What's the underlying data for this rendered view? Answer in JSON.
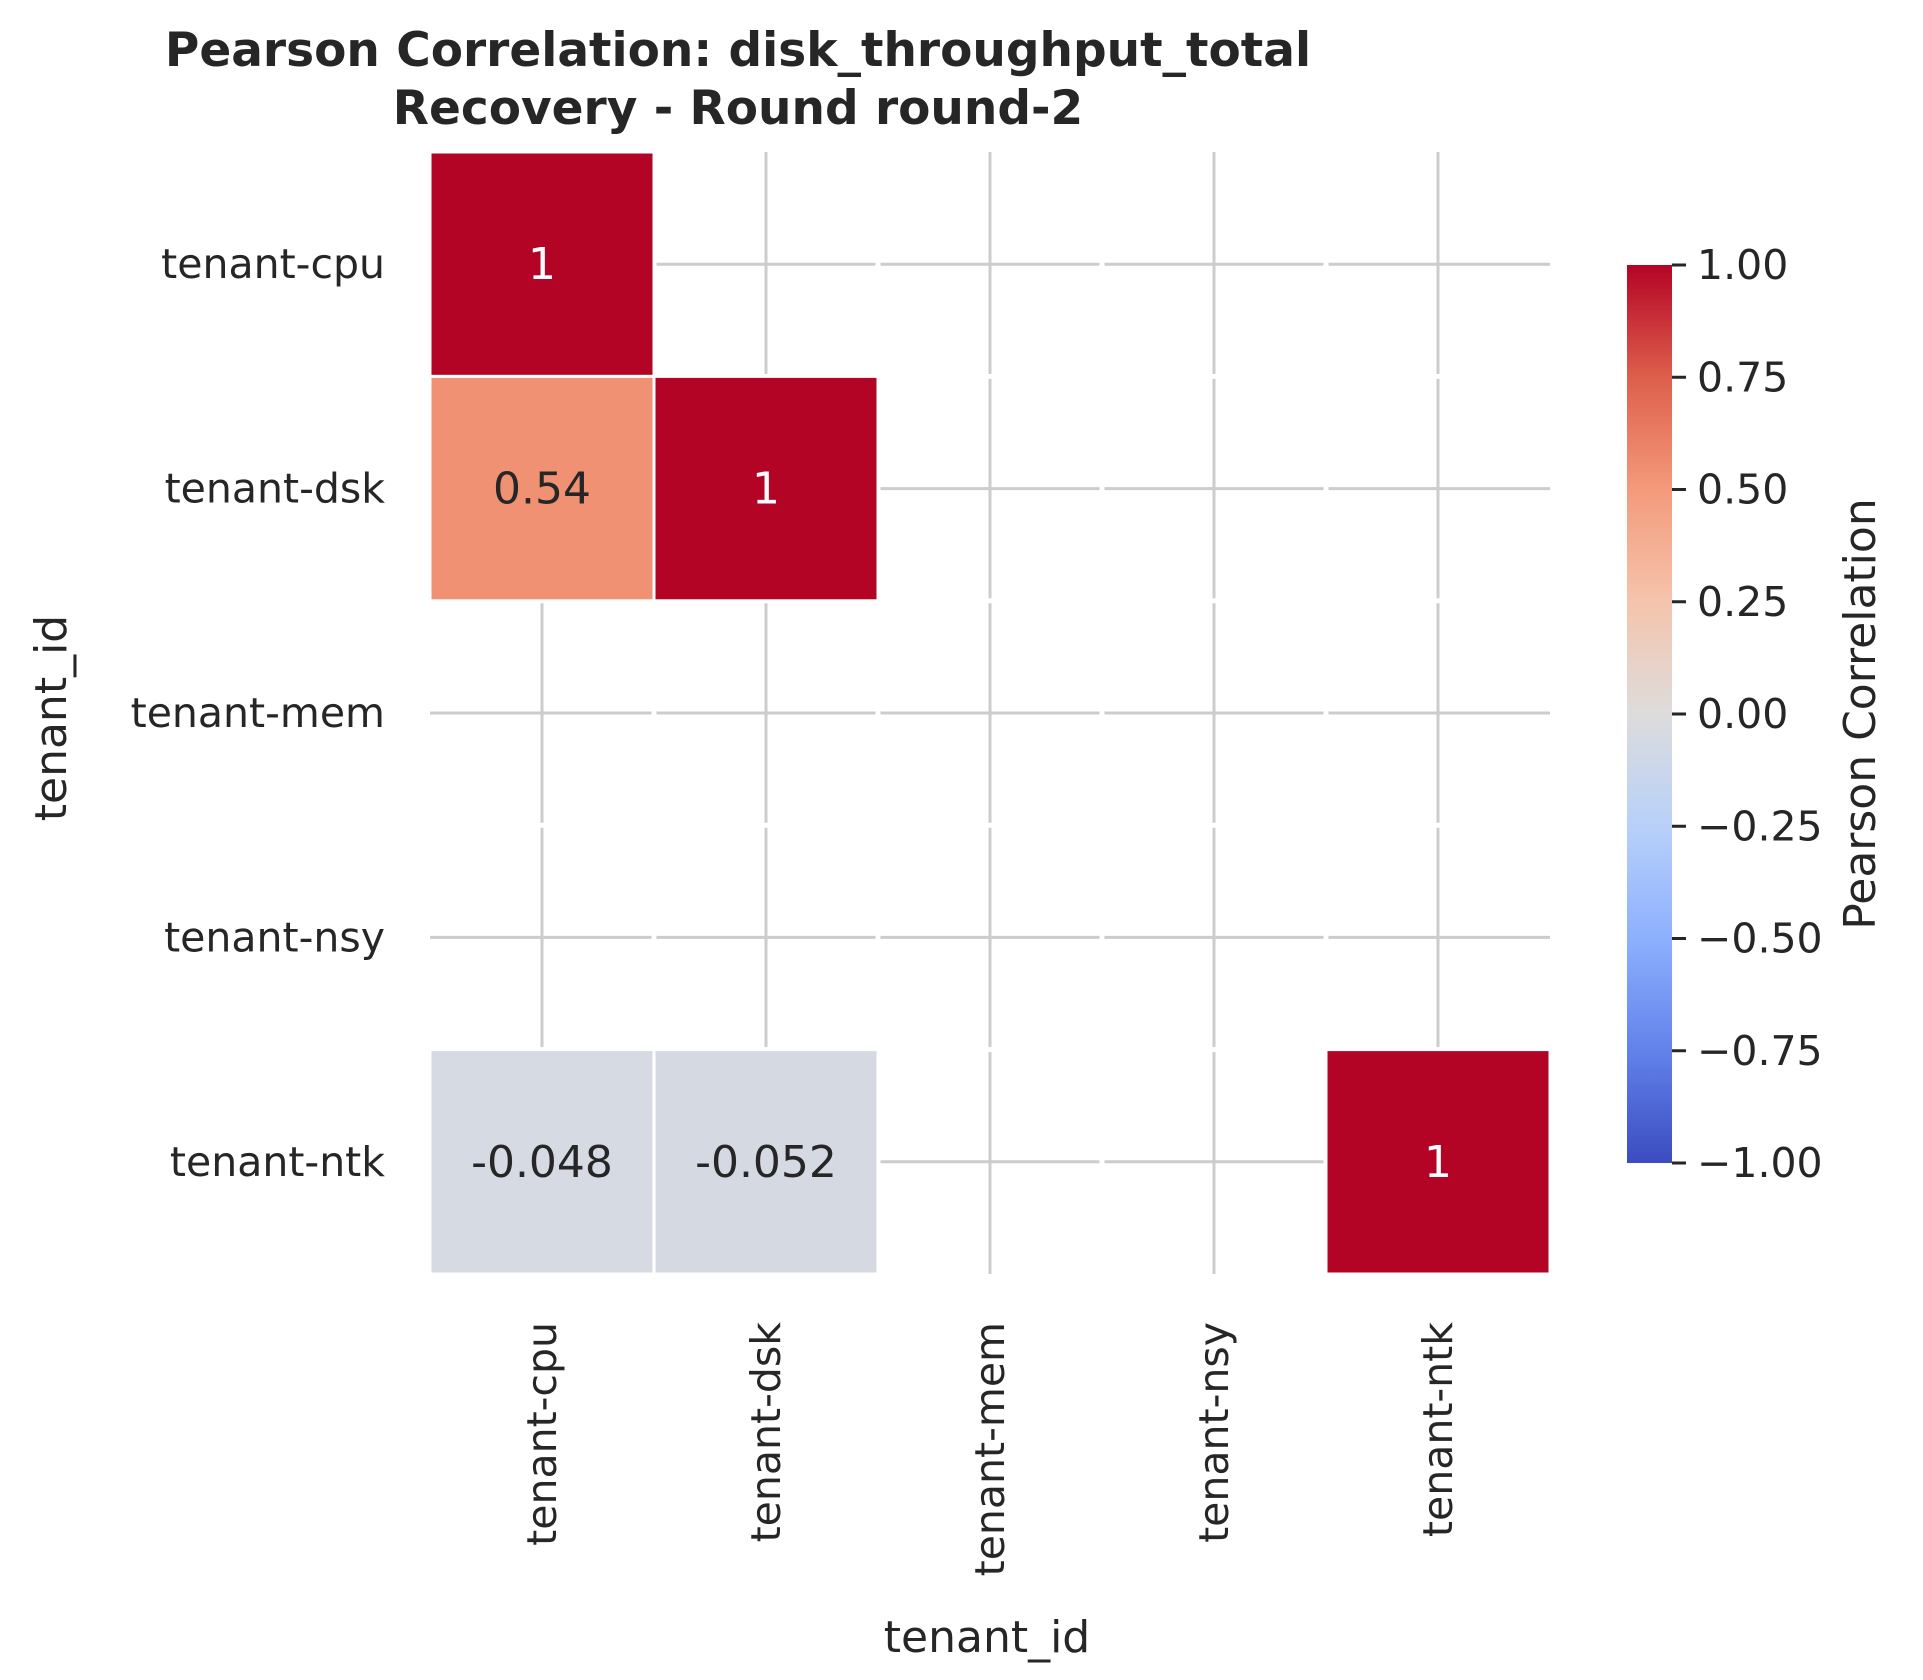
{
  "chart_data": {
    "type": "heatmap",
    "title": "Pearson Correlation: disk_throughput_total",
    "subtitle": "Recovery - Round round-2",
    "xlabel": "tenant_id",
    "ylabel": "tenant_id",
    "categories": [
      "tenant-cpu",
      "tenant-dsk",
      "tenant-mem",
      "tenant-nsy",
      "tenant-ntk"
    ],
    "annotations": [
      [
        "1",
        "",
        "",
        "",
        ""
      ],
      [
        "0.54",
        "1",
        "",
        "",
        ""
      ],
      [
        "",
        "",
        "",
        "",
        ""
      ],
      [
        "",
        "",
        "",
        "",
        ""
      ],
      [
        "-0.048",
        "-0.052",
        "",
        "",
        "1"
      ]
    ],
    "values": [
      [
        1,
        null,
        null,
        null,
        null
      ],
      [
        0.54,
        1,
        null,
        null,
        null
      ],
      [
        null,
        null,
        null,
        null,
        null
      ],
      [
        null,
        null,
        null,
        null,
        null
      ],
      [
        -0.048,
        -0.052,
        null,
        null,
        1
      ]
    ],
    "colorbar": {
      "label": "Pearson Correlation",
      "range": [
        -1,
        1
      ],
      "ticks": [
        "1.00",
        "0.75",
        "0.50",
        "0.25",
        "0.00",
        "−0.25",
        "−0.50",
        "−0.75",
        "−1.00"
      ],
      "tick_values": [
        1,
        0.75,
        0.5,
        0.25,
        0,
        -0.25,
        -0.5,
        -0.75,
        -1
      ],
      "colormap": "coolwarm"
    },
    "grid": true,
    "colors": {
      "low": "#3b4cc0",
      "mid": "#dddddd",
      "high": "#b40426",
      "grid": "#cccccc",
      "cell_border": "#ffffff"
    }
  }
}
